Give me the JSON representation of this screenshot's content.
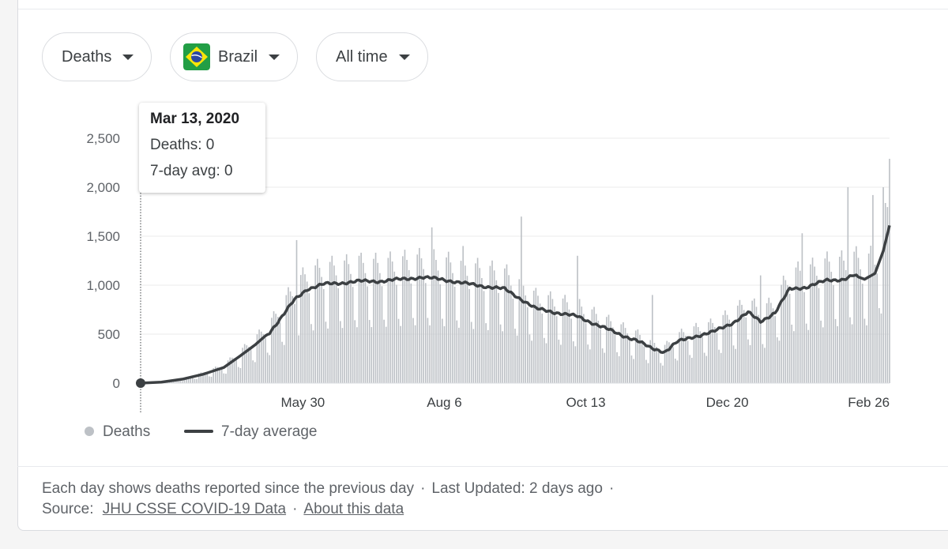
{
  "filters": {
    "metric": "Deaths",
    "country": "Brazil",
    "range": "All time"
  },
  "colors": {
    "bars": "#bdc1c6",
    "line": "#3c4043",
    "grid": "#ebebeb",
    "flag_green": "#229e45",
    "flag_yellow": "#f8e509",
    "flag_blue": "#2b49a3"
  },
  "tooltip": {
    "date": "Mar 13, 2020",
    "deaths": "Deaths: 0",
    "avg": "7-day avg: 0"
  },
  "footer": {
    "note": "Each day shows deaths reported since the previous day",
    "updated": "Last Updated: 2 days ago",
    "source_label": "Source:",
    "source_link": "JHU CSSE COVID-19 Data",
    "about_link": "About this data"
  },
  "chart_data": {
    "type": "bar",
    "title": "",
    "xlabel": "",
    "ylabel": "",
    "ylim": [
      0,
      2500
    ],
    "yticks": [
      0,
      500,
      1000,
      1500,
      2000,
      2500
    ],
    "ytick_labels": [
      "0",
      "500",
      "1,000",
      "1,500",
      "2,000",
      "2,500"
    ],
    "xticks": [
      {
        "label": "May 30",
        "day_index": 78
      },
      {
        "label": "Aug 6",
        "day_index": 146
      },
      {
        "label": "Oct 13",
        "day_index": 214
      },
      {
        "label": "Dec 20",
        "day_index": 282
      },
      {
        "label": "Feb 26",
        "day_index": 350
      }
    ],
    "start_date": "2020-03-13",
    "num_days": 361,
    "legend": [
      {
        "label": "Deaths",
        "kind": "bar"
      },
      {
        "label": "7-day average",
        "kind": "line"
      }
    ],
    "avg_anchors": [
      [
        0,
        0
      ],
      [
        10,
        10
      ],
      [
        20,
        40
      ],
      [
        30,
        90
      ],
      [
        40,
        160
      ],
      [
        48,
        280
      ],
      [
        55,
        390
      ],
      [
        62,
        520
      ],
      [
        68,
        680
      ],
      [
        74,
        850
      ],
      [
        80,
        960
      ],
      [
        88,
        1010
      ],
      [
        95,
        1020
      ],
      [
        105,
        1040
      ],
      [
        115,
        1040
      ],
      [
        125,
        1060
      ],
      [
        135,
        1080
      ],
      [
        145,
        1060
      ],
      [
        155,
        1020
      ],
      [
        165,
        990
      ],
      [
        175,
        960
      ],
      [
        182,
        870
      ],
      [
        190,
        760
      ],
      [
        200,
        720
      ],
      [
        210,
        680
      ],
      [
        220,
        590
      ],
      [
        230,
        500
      ],
      [
        238,
        440
      ],
      [
        245,
        360
      ],
      [
        252,
        320
      ],
      [
        258,
        420
      ],
      [
        265,
        470
      ],
      [
        275,
        520
      ],
      [
        285,
        620
      ],
      [
        292,
        720
      ],
      [
        298,
        630
      ],
      [
        305,
        720
      ],
      [
        312,
        960
      ],
      [
        320,
        980
      ],
      [
        330,
        1050
      ],
      [
        338,
        1060
      ],
      [
        343,
        1100
      ],
      [
        348,
        1060
      ],
      [
        353,
        1120
      ],
      [
        357,
        1350
      ],
      [
        360,
        1610
      ]
    ],
    "spikes": [
      [
        75,
        1460
      ],
      [
        105,
        1300
      ],
      [
        140,
        1590
      ],
      [
        155,
        1400
      ],
      [
        183,
        1700
      ],
      [
        210,
        1300
      ],
      [
        246,
        900
      ],
      [
        298,
        1100
      ],
      [
        318,
        1530
      ],
      [
        340,
        2000
      ],
      [
        352,
        1920
      ],
      [
        357,
        2000
      ],
      [
        360,
        2290
      ]
    ],
    "series": [
      {
        "name": "Deaths",
        "note": "daily values vary around the 7-day average with strong weekly dips"
      },
      {
        "name": "7-day average"
      }
    ]
  }
}
